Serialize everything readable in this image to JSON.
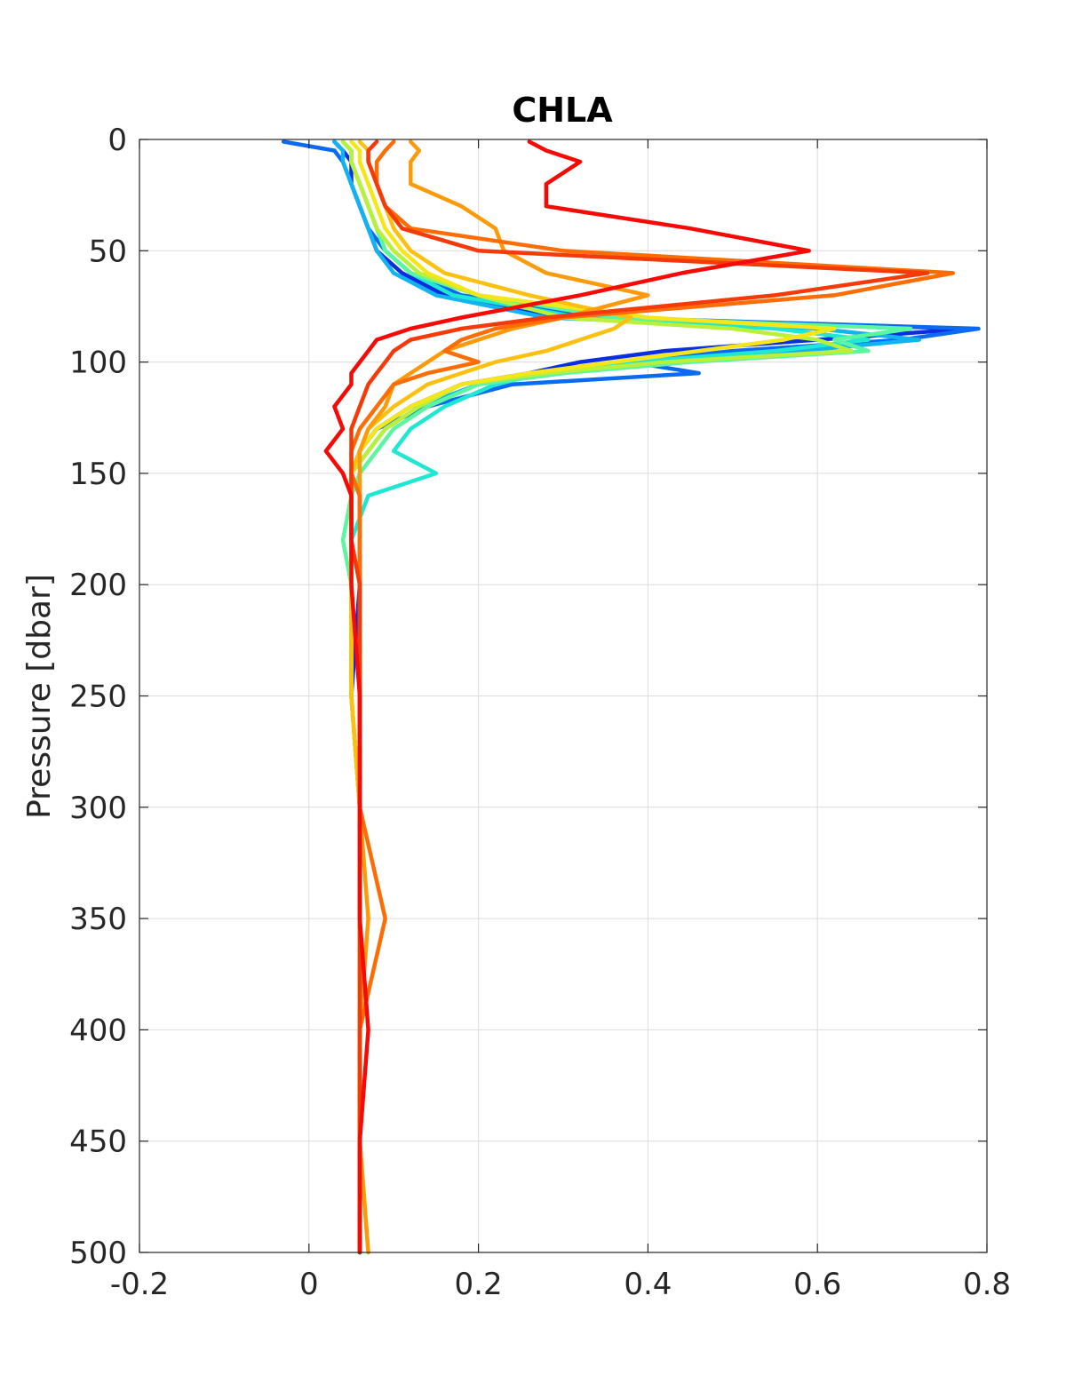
{
  "chart_data": {
    "type": "line",
    "title": "CHLA",
    "xlabel": "",
    "ylabel": "Pressure [dbar]",
    "xlim": [
      -0.2,
      0.8
    ],
    "ylim": [
      0,
      500
    ],
    "y_reversed": true,
    "grid": true,
    "xticks": [
      -0.2,
      0,
      0.2,
      0.4,
      0.6,
      0.8
    ],
    "yticks": [
      0,
      50,
      100,
      150,
      200,
      250,
      300,
      350,
      400,
      450,
      500
    ],
    "xtick_labels": [
      "-0.2",
      "0",
      "0.2",
      "0.4",
      "0.6",
      "0.8"
    ],
    "ytick_labels": [
      "0",
      "50",
      "100",
      "150",
      "200",
      "250",
      "300",
      "350",
      "400",
      "450",
      "500"
    ],
    "pressure": [
      1,
      5,
      10,
      20,
      30,
      40,
      50,
      60,
      70,
      80,
      85,
      90,
      95,
      100,
      105,
      110,
      120,
      130,
      140,
      150,
      160,
      180,
      200,
      250,
      300,
      350,
      400,
      450,
      500
    ],
    "series": [
      {
        "color": "#0a2ee0",
        "chla": [
          0.03,
          0.04,
          0.05,
          0.05,
          0.06,
          0.07,
          0.08,
          0.11,
          0.16,
          0.3,
          0.78,
          0.6,
          0.42,
          0.32,
          0.26,
          0.18,
          0.12,
          0.08,
          0.06,
          0.05,
          0.06,
          0.06,
          0.06,
          0.05,
          0.06,
          0.06,
          0.06,
          0.06,
          0.06
        ]
      },
      {
        "color": "#0a6af0",
        "chla": [
          -0.03,
          0.03,
          0.04,
          0.05,
          0.06,
          0.07,
          0.09,
          0.12,
          0.18,
          0.35,
          0.79,
          0.7,
          0.5,
          0.38,
          0.46,
          0.24,
          0.14,
          0.08,
          0.06,
          0.05,
          0.05,
          0.05,
          0.05,
          0.05,
          0.06,
          0.06,
          0.06,
          0.06,
          0.06
        ]
      },
      {
        "color": "#12b4f0",
        "chla": [
          0.03,
          0.04,
          0.04,
          0.05,
          0.06,
          0.07,
          0.08,
          0.1,
          0.15,
          0.28,
          0.6,
          0.72,
          0.58,
          0.4,
          0.3,
          0.2,
          0.13,
          0.09,
          0.07,
          0.05,
          0.05,
          0.05,
          0.05,
          0.05,
          0.06,
          0.06,
          0.06,
          0.06,
          0.06
        ]
      },
      {
        "color": "#1ee8d2",
        "chla": [
          0.04,
          0.05,
          0.05,
          0.06,
          0.07,
          0.08,
          0.09,
          0.12,
          0.17,
          0.32,
          0.55,
          0.66,
          0.55,
          0.38,
          0.28,
          0.22,
          0.16,
          0.12,
          0.1,
          0.15,
          0.07,
          0.05,
          0.05,
          0.05,
          0.06,
          0.06,
          0.06,
          0.06,
          0.06
        ]
      },
      {
        "color": "#5cf5a0",
        "chla": [
          0.04,
          0.05,
          0.05,
          0.06,
          0.07,
          0.08,
          0.09,
          0.12,
          0.2,
          0.36,
          0.71,
          0.62,
          0.66,
          0.45,
          0.3,
          0.2,
          0.14,
          0.1,
          0.08,
          0.06,
          0.05,
          0.04,
          0.05,
          0.05,
          0.06,
          0.06,
          0.06,
          0.06,
          0.06
        ]
      },
      {
        "color": "#b8f03a",
        "chla": [
          0.04,
          0.05,
          0.05,
          0.06,
          0.07,
          0.08,
          0.1,
          0.13,
          0.2,
          0.3,
          0.5,
          0.6,
          0.64,
          0.42,
          0.28,
          0.18,
          0.13,
          0.09,
          0.07,
          0.05,
          0.05,
          0.05,
          0.05,
          0.05,
          0.06,
          0.06,
          0.06,
          0.06,
          0.06
        ]
      },
      {
        "color": "#f5e61a",
        "chla": [
          0.05,
          0.06,
          0.06,
          0.07,
          0.08,
          0.09,
          0.11,
          0.14,
          0.2,
          0.4,
          0.62,
          0.56,
          0.46,
          0.36,
          0.26,
          0.18,
          0.12,
          0.08,
          0.06,
          0.05,
          0.05,
          0.05,
          0.05,
          0.05,
          0.06,
          0.06,
          0.06,
          0.06,
          0.06
        ]
      },
      {
        "color": "#fcc010",
        "chla": [
          0.06,
          0.07,
          0.07,
          0.08,
          0.09,
          0.1,
          0.12,
          0.16,
          0.26,
          0.38,
          0.36,
          0.32,
          0.28,
          0.22,
          0.18,
          0.14,
          0.1,
          0.07,
          0.06,
          0.05,
          0.05,
          0.05,
          0.05,
          0.05,
          0.06,
          0.06,
          0.06,
          0.06,
          0.07
        ]
      },
      {
        "color": "#fc9a0a",
        "chla": [
          0.12,
          0.13,
          0.12,
          0.12,
          0.18,
          0.22,
          0.23,
          0.28,
          0.4,
          0.3,
          0.24,
          0.2,
          0.16,
          0.14,
          0.12,
          0.1,
          0.09,
          0.07,
          0.06,
          0.06,
          0.06,
          0.06,
          0.06,
          0.06,
          0.06,
          0.07,
          0.06,
          0.06,
          0.07
        ]
      },
      {
        "color": "#fc6e05",
        "chla": [
          0.1,
          0.09,
          0.08,
          0.08,
          0.09,
          0.12,
          0.3,
          0.76,
          0.62,
          0.3,
          0.22,
          0.18,
          0.16,
          0.2,
          0.14,
          0.1,
          0.08,
          0.06,
          0.05,
          0.05,
          0.06,
          0.06,
          0.06,
          0.06,
          0.06,
          0.09,
          0.06,
          0.06,
          0.06
        ]
      },
      {
        "color": "#f53a0a",
        "chla": [
          0.08,
          0.07,
          0.07,
          0.08,
          0.09,
          0.11,
          0.2,
          0.73,
          0.55,
          0.28,
          0.18,
          0.12,
          0.1,
          0.09,
          0.08,
          0.07,
          0.06,
          0.05,
          0.05,
          0.05,
          0.05,
          0.05,
          0.06,
          0.06,
          0.06,
          0.06,
          0.06,
          0.06,
          0.06
        ]
      },
      {
        "color": "#f50a05",
        "chla": [
          0.26,
          0.28,
          0.32,
          0.28,
          0.28,
          0.45,
          0.59,
          0.44,
          0.32,
          0.18,
          0.12,
          0.08,
          0.07,
          0.06,
          0.05,
          0.05,
          0.03,
          0.04,
          0.02,
          0.04,
          0.05,
          0.05,
          0.05,
          0.06,
          0.06,
          0.06,
          0.07,
          0.06,
          0.06
        ]
      }
    ]
  }
}
